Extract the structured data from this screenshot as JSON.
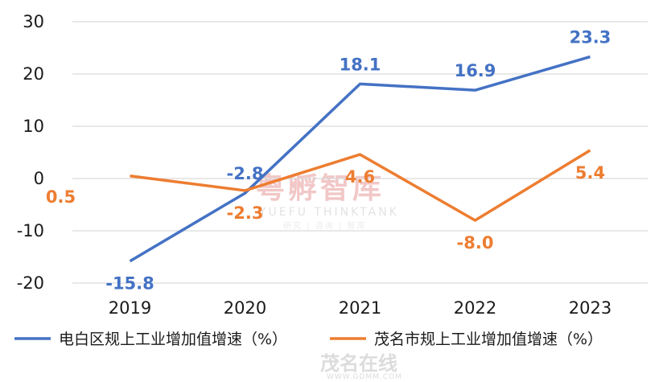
{
  "chart_data": {
    "type": "line",
    "categories": [
      "2019",
      "2020",
      "2021",
      "2022",
      "2023"
    ],
    "ylim": [
      -20,
      30
    ],
    "yticks": [
      -20,
      -10,
      0,
      10,
      20,
      30
    ],
    "grid": true,
    "legend_position": "bottom",
    "series": [
      {
        "name": "电白区规上工业增加值增速（%）",
        "color": "#4472C4",
        "values": [
          -15.8,
          -2.8,
          18.1,
          16.9,
          23.3
        ],
        "labels": [
          "-15.8",
          "-2.8",
          "18.1",
          "16.9",
          "23.3"
        ]
      },
      {
        "name": "茂名市规上工业增加值增速（%）",
        "color": "#ED7D31",
        "values": [
          0.5,
          -2.3,
          4.6,
          -8.0,
          5.4
        ],
        "labels": [
          "0.5",
          "-2.3",
          "4.6",
          "-8.0",
          "5.4"
        ]
      }
    ]
  },
  "watermarks": {
    "main_cn": "粤孵智库",
    "main_en": "YUEFU  THINKTANK",
    "main_sub": "研究 | 咨询 | 智库",
    "corner_cn": "茂名在线",
    "corner_en": "WWW.GDMM.COM"
  }
}
